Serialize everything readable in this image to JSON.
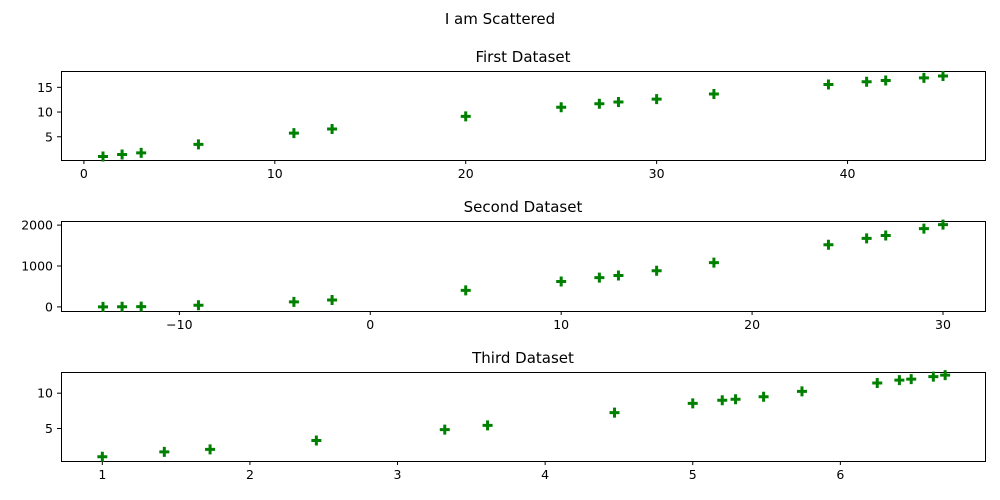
{
  "figure": {
    "title": "I am Scattered",
    "marker_color": "#008000"
  },
  "chart_data": [
    {
      "type": "scatter",
      "title": "First Dataset",
      "xlabel": "",
      "ylabel": "",
      "xlim": [
        -1.2,
        47.2
      ],
      "ylim": [
        0.3,
        18.3
      ],
      "xticks": [
        0,
        10,
        20,
        30,
        40
      ],
      "yticks": [
        5,
        10,
        15
      ],
      "grid": false,
      "points": [
        {
          "x": 1,
          "y": 1
        },
        {
          "x": 2,
          "y": 1.41
        },
        {
          "x": 3,
          "y": 1.73
        },
        {
          "x": 6,
          "y": 3.46
        },
        {
          "x": 11,
          "y": 5.74
        },
        {
          "x": 13,
          "y": 6.56
        },
        {
          "x": 20,
          "y": 9.12
        },
        {
          "x": 25,
          "y": 10.97
        },
        {
          "x": 27,
          "y": 11.68
        },
        {
          "x": 28,
          "y": 12.04
        },
        {
          "x": 30,
          "y": 12.62
        },
        {
          "x": 33,
          "y": 13.66
        },
        {
          "x": 39,
          "y": 15.58
        },
        {
          "x": 41,
          "y": 16.12
        },
        {
          "x": 42,
          "y": 16.39
        },
        {
          "x": 44,
          "y": 16.9
        },
        {
          "x": 45,
          "y": 17.3
        }
      ]
    },
    {
      "type": "scatter",
      "title": "Second Dataset",
      "xlabel": "",
      "ylabel": "",
      "xlim": [
        -16.2,
        32.2
      ],
      "ylim": [
        -100,
        2100
      ],
      "xticks": [
        -10,
        0,
        10,
        20,
        30
      ],
      "yticks": [
        0,
        1000,
        2000
      ],
      "grid": false,
      "points": [
        {
          "x": -14,
          "y": 0
        },
        {
          "x": -13,
          "y": 3
        },
        {
          "x": -12,
          "y": 8
        },
        {
          "x": -9,
          "y": 42
        },
        {
          "x": -4,
          "y": 122
        },
        {
          "x": -2,
          "y": 168
        },
        {
          "x": 5,
          "y": 405
        },
        {
          "x": 10,
          "y": 621
        },
        {
          "x": 12,
          "y": 715
        },
        {
          "x": 13,
          "y": 767
        },
        {
          "x": 15,
          "y": 885
        },
        {
          "x": 18,
          "y": 1082
        },
        {
          "x": 24,
          "y": 1520
        },
        {
          "x": 26,
          "y": 1675
        },
        {
          "x": 27,
          "y": 1747
        },
        {
          "x": 29,
          "y": 1915
        },
        {
          "x": 30,
          "y": 2010
        }
      ]
    },
    {
      "type": "scatter",
      "title": "Third Dataset",
      "xlabel": "",
      "ylabel": "",
      "xlim": [
        0.72,
        6.98
      ],
      "ylim": [
        0.4,
        13.0
      ],
      "xticks": [
        1,
        2,
        3,
        4,
        5,
        6
      ],
      "yticks": [
        5,
        10
      ],
      "grid": false,
      "points": [
        {
          "x": 1,
          "y": 1
        },
        {
          "x": 1.42,
          "y": 1.7
        },
        {
          "x": 1.73,
          "y": 2.05
        },
        {
          "x": 2.45,
          "y": 3.3
        },
        {
          "x": 3.32,
          "y": 4.85
        },
        {
          "x": 3.61,
          "y": 5.45
        },
        {
          "x": 4.47,
          "y": 7.25
        },
        {
          "x": 5,
          "y": 8.55
        },
        {
          "x": 5.2,
          "y": 9.0
        },
        {
          "x": 5.29,
          "y": 9.15
        },
        {
          "x": 5.48,
          "y": 9.5
        },
        {
          "x": 5.74,
          "y": 10.25
        },
        {
          "x": 6.25,
          "y": 11.45
        },
        {
          "x": 6.4,
          "y": 11.85
        },
        {
          "x": 6.48,
          "y": 12.0
        },
        {
          "x": 6.63,
          "y": 12.35
        },
        {
          "x": 6.71,
          "y": 12.55
        }
      ]
    }
  ]
}
